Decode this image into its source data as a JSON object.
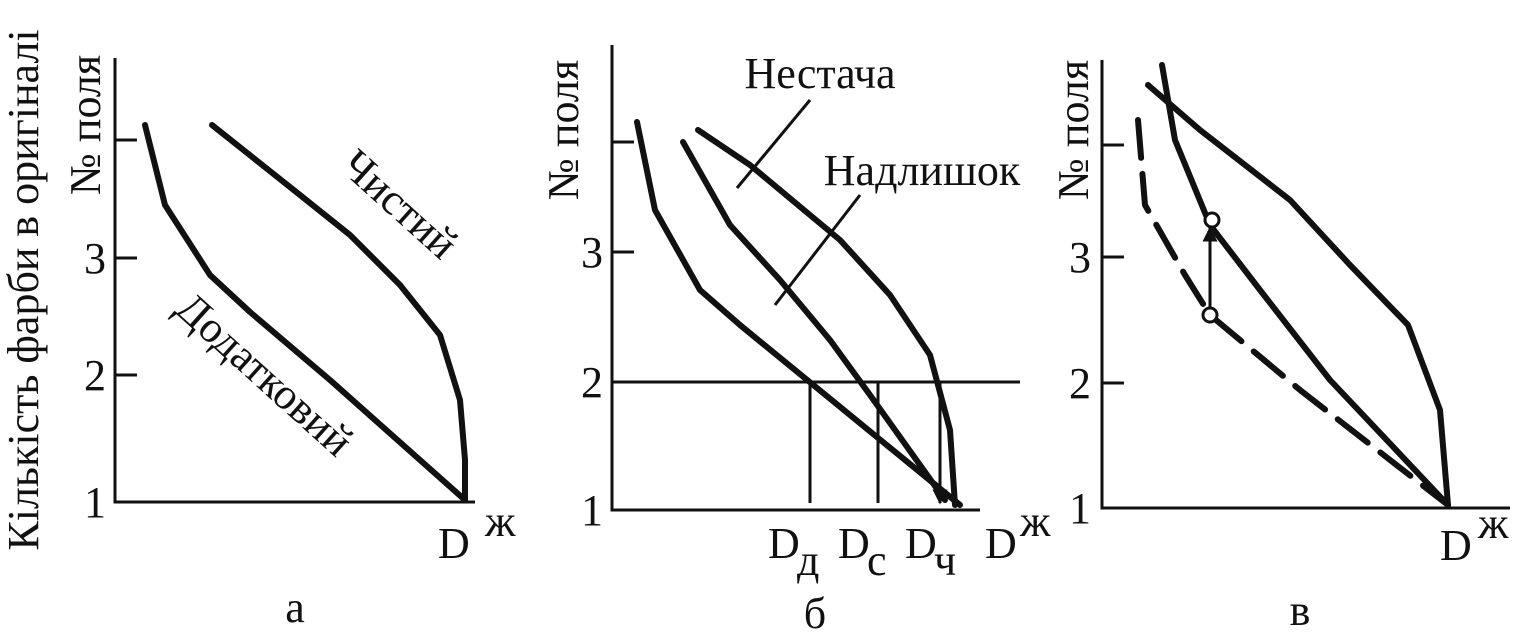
{
  "y_axis_label": "Кількість фарби в оригіналі",
  "panels": [
    {
      "caption": "а",
      "y_label": "№ поля",
      "y_ticks": [
        "3",
        "2",
        "1"
      ],
      "x_label": "D",
      "x_label_sup": "ж",
      "curves": [
        "Чистий",
        "Додатковий"
      ]
    },
    {
      "caption": "б",
      "y_label": "№ поля",
      "y_ticks": [
        "3",
        "2",
        "1"
      ],
      "x_label": "D",
      "x_label_sup": "ж",
      "annotations": [
        "Нестача",
        "Надлишок"
      ],
      "markers": [
        {
          "base": "D",
          "sub": "д"
        },
        {
          "base": "D",
          "sub": "с"
        },
        {
          "base": "D",
          "sub": "ч"
        }
      ]
    },
    {
      "caption": "в",
      "y_label": "№ поля",
      "y_ticks": [
        "3",
        "2",
        "1"
      ],
      "x_label": "D",
      "x_label_sup": "ж"
    }
  ]
}
